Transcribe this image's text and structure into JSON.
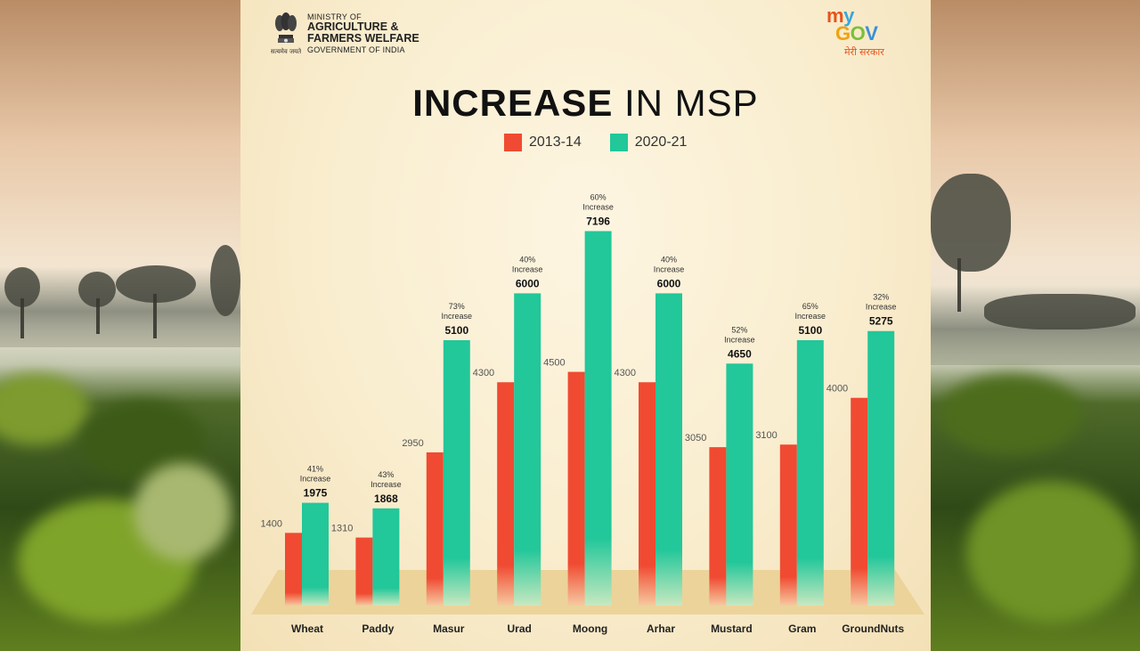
{
  "header": {
    "ministry_line1": "MINISTRY OF",
    "ministry_line2": "AGRICULTURE &",
    "ministry_line3": "FARMERS WELFARE",
    "ministry_line4": "GOVERNMENT OF INDIA",
    "mygov_hindi": "मेरी सरकार"
  },
  "title_bold": "INCREASE",
  "title_rest": "IN MSP",
  "colors": {
    "old": "#f04a32",
    "new": "#22c79a"
  },
  "chart_data": {
    "type": "bar",
    "title": "INCREASE IN MSP",
    "xlabel": "",
    "ylabel": "",
    "ylim": [
      0,
      8000
    ],
    "categories": [
      "Wheat",
      "Paddy",
      "Masur",
      "Urad",
      "Moong",
      "Arhar",
      "Mustard",
      "Gram",
      "GroundNuts"
    ],
    "series": [
      {
        "name": "2013-14",
        "values": [
          1400,
          1310,
          2950,
          4300,
          4500,
          4300,
          3050,
          3100,
          4000
        ]
      },
      {
        "name": "2020-21",
        "values": [
          1975,
          1868,
          5100,
          6000,
          7196,
          6000,
          4650,
          5100,
          5275
        ]
      }
    ],
    "increase_labels": [
      "41%\nIncrease",
      "43%\nIncrease",
      "73%\nIncrease",
      "40%\nIncrease",
      "60%\nIncrease",
      "40%\nIncrease",
      "52%\nIncrease",
      "65%\nIncrease",
      "32%\nIncrease"
    ],
    "legend": [
      "2013-14",
      "2020-21"
    ]
  }
}
